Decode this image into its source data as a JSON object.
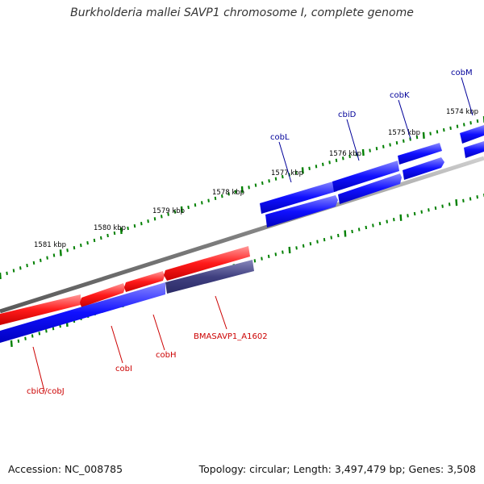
{
  "title": "Burkholderia mallei SAVP1 chromosome I, complete genome",
  "footer": {
    "accession": "Accession: NC_008785",
    "summary": "Topology: circular; Length: 3,497,479 bp; Genes: 3,508"
  },
  "colors": {
    "forward_gene": "#ff0000",
    "reverse_gene": "#0000ff",
    "highlighted_gene": "#404080",
    "backbone": "#808080",
    "tick": "#008000",
    "forward_label": "#cc0000",
    "reverse_label": "#000099",
    "tick_label": "#000000"
  },
  "scale_labels": [
    "1581 kbp",
    "1580 kbp",
    "1579 kbp",
    "1578 kbp",
    "1577 kbp",
    "1576 kbp",
    "1575 kbp",
    "1574 kbp"
  ],
  "genes": {
    "forward": [
      "cbiG/cobJ",
      "cobI",
      "cobH",
      "BMASAVP1_A1602"
    ],
    "reverse": [
      "cobL",
      "cbiD",
      "cobK",
      "cobM"
    ]
  }
}
